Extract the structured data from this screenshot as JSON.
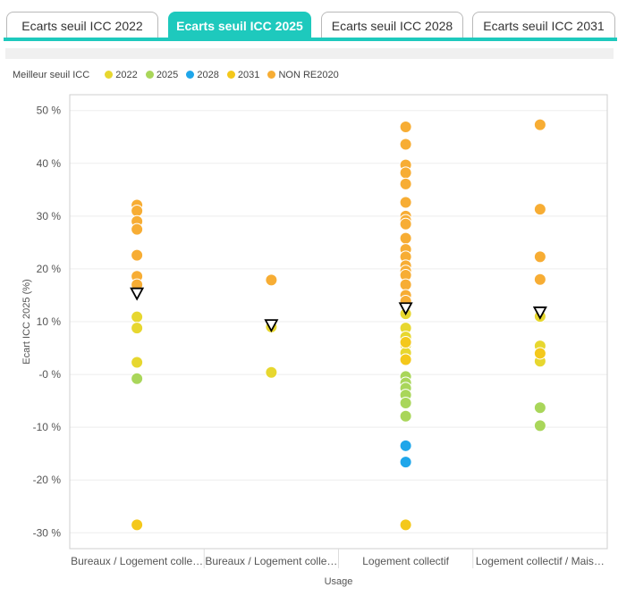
{
  "tabs": [
    {
      "label": "Ecarts seuil ICC 2022",
      "active": false
    },
    {
      "label": "Ecarts seuil ICC 2025",
      "active": true
    },
    {
      "label": "Ecarts seuil ICC 2028",
      "active": false
    },
    {
      "label": "Ecarts seuil ICC 2031",
      "active": false
    }
  ],
  "colors": {
    "accent": "#1ec9bd",
    "grid": "#eeeeee",
    "plot_border": "#cfcfcf",
    "marker": "#000000"
  },
  "chart_data": {
    "type": "scatter",
    "legend_title": "Meilleur seuil ICC",
    "legend_placement": "top-left",
    "legend": [
      {
        "name": "2022",
        "color": "#e7d72f"
      },
      {
        "name": "2025",
        "color": "#a9d65a"
      },
      {
        "name": "2028",
        "color": "#1fa6ea"
      },
      {
        "name": "2031",
        "color": "#f4c81b"
      },
      {
        "name": "NON RE2020",
        "color": "#f7ad34"
      }
    ],
    "xlabel": "Usage",
    "ylabel": "Ecart ICC 2025 (%)",
    "ylim": [
      -33,
      53
    ],
    "yticks": [
      50,
      40,
      30,
      20,
      10,
      0,
      -10,
      -20,
      -30
    ],
    "ytick_labels": [
      "50 %",
      "40 %",
      "30 %",
      "20 %",
      "10 %",
      "-0 %",
      "-10 %",
      "-20 %",
      "-30 %"
    ],
    "grid": true,
    "categories": [
      "Bureaux / Logement colle…",
      "Bureaux / Logement colle…",
      "Logement collectif",
      "Logement collectif / Mais…"
    ],
    "series": [
      {
        "name": "NON RE2020",
        "color": "#f7ad34",
        "points": [
          {
            "cat": 0,
            "y": 32.1
          },
          {
            "cat": 0,
            "y": 31.0
          },
          {
            "cat": 0,
            "y": 29.0
          },
          {
            "cat": 0,
            "y": 27.5
          },
          {
            "cat": 0,
            "y": 22.6
          },
          {
            "cat": 0,
            "y": 18.6
          },
          {
            "cat": 0,
            "y": 17.0
          },
          {
            "cat": 1,
            "y": 17.9
          },
          {
            "cat": 2,
            "y": 46.9
          },
          {
            "cat": 2,
            "y": 43.6
          },
          {
            "cat": 2,
            "y": 39.7
          },
          {
            "cat": 2,
            "y": 38.2
          },
          {
            "cat": 2,
            "y": 36.1
          },
          {
            "cat": 2,
            "y": 32.6
          },
          {
            "cat": 2,
            "y": 30.0
          },
          {
            "cat": 2,
            "y": 29.2
          },
          {
            "cat": 2,
            "y": 28.5
          },
          {
            "cat": 2,
            "y": 25.8
          },
          {
            "cat": 2,
            "y": 23.7
          },
          {
            "cat": 2,
            "y": 22.3
          },
          {
            "cat": 2,
            "y": 20.6
          },
          {
            "cat": 2,
            "y": 19.6
          },
          {
            "cat": 2,
            "y": 18.8
          },
          {
            "cat": 2,
            "y": 17.0
          },
          {
            "cat": 2,
            "y": 15.0
          },
          {
            "cat": 2,
            "y": 13.9
          },
          {
            "cat": 3,
            "y": 47.3
          },
          {
            "cat": 3,
            "y": 31.3
          },
          {
            "cat": 3,
            "y": 22.3
          },
          {
            "cat": 3,
            "y": 18.0
          }
        ]
      },
      {
        "name": "2022",
        "color": "#e7d72f",
        "points": [
          {
            "cat": 0,
            "y": 10.9
          },
          {
            "cat": 0,
            "y": 8.8
          },
          {
            "cat": 0,
            "y": 2.3
          },
          {
            "cat": 1,
            "y": 9.0
          },
          {
            "cat": 1,
            "y": 0.4
          },
          {
            "cat": 2,
            "y": 11.5
          },
          {
            "cat": 2,
            "y": 8.8
          },
          {
            "cat": 2,
            "y": 7.1
          },
          {
            "cat": 2,
            "y": 5.6
          },
          {
            "cat": 2,
            "y": 4.1
          },
          {
            "cat": 2,
            "y": 2.8
          },
          {
            "cat": 3,
            "y": 11.0
          },
          {
            "cat": 3,
            "y": 5.4
          },
          {
            "cat": 3,
            "y": 2.5
          }
        ]
      },
      {
        "name": "2031",
        "color": "#f4c81b",
        "points": [
          {
            "cat": 0,
            "y": -28.5
          },
          {
            "cat": 2,
            "y": 6.1
          },
          {
            "cat": 2,
            "y": 2.8
          },
          {
            "cat": 2,
            "y": -28.5
          },
          {
            "cat": 3,
            "y": 4.0
          }
        ]
      },
      {
        "name": "2025",
        "color": "#a9d65a",
        "points": [
          {
            "cat": 0,
            "y": -0.8
          },
          {
            "cat": 2,
            "y": -0.4
          },
          {
            "cat": 2,
            "y": -1.6
          },
          {
            "cat": 2,
            "y": -2.6
          },
          {
            "cat": 2,
            "y": -3.9
          },
          {
            "cat": 2,
            "y": -5.4
          },
          {
            "cat": 2,
            "y": -7.9
          },
          {
            "cat": 3,
            "y": -6.3
          },
          {
            "cat": 3,
            "y": -9.7
          }
        ]
      },
      {
        "name": "2028",
        "color": "#1fa6ea",
        "points": [
          {
            "cat": 2,
            "y": -13.5
          },
          {
            "cat": 2,
            "y": -16.6
          }
        ]
      }
    ],
    "markers": {
      "shape": "triangle-down",
      "values": [
        15.3,
        9.3,
        12.5,
        11.7
      ]
    }
  }
}
